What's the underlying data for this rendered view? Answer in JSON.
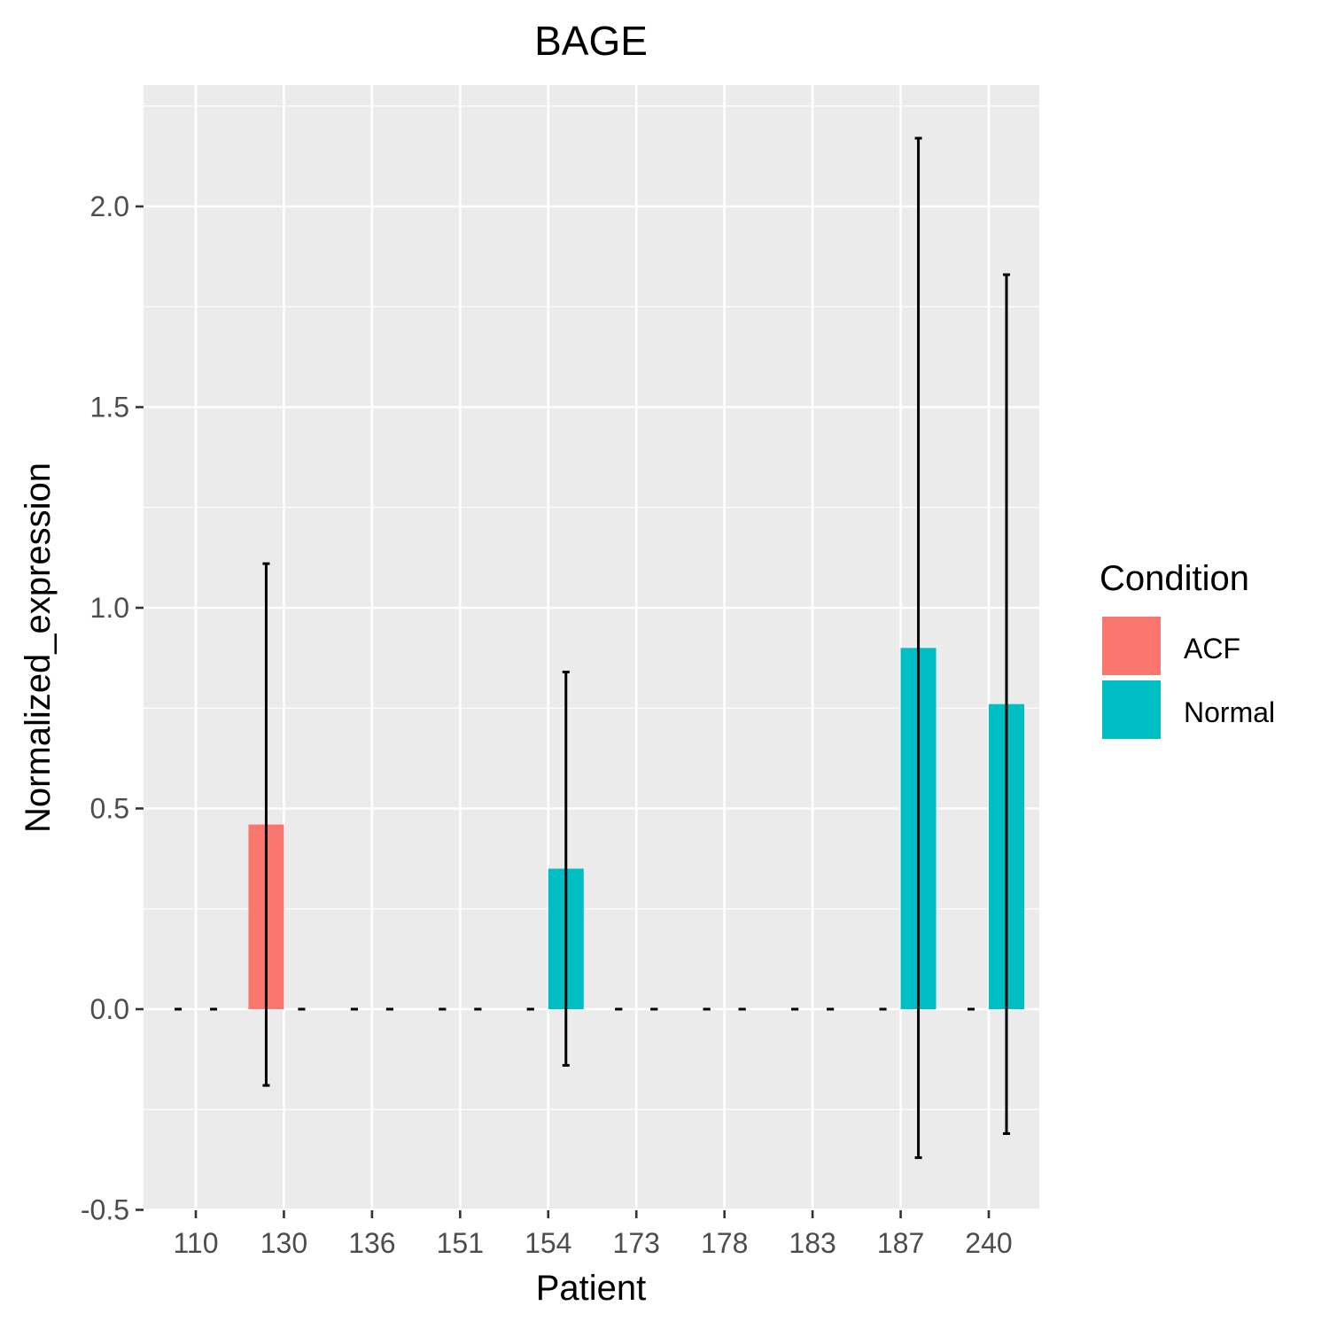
{
  "chart_data": {
    "type": "bar",
    "title": "BAGE",
    "xlabel": "Patient",
    "ylabel": "Normalized_expression",
    "ylim": [
      -0.5,
      2.3
    ],
    "yticks": [
      "-0.5",
      "0.0",
      "0.5",
      "1.0",
      "1.5",
      "2.0"
    ],
    "categories": [
      "110",
      "130",
      "136",
      "151",
      "154",
      "173",
      "178",
      "183",
      "187",
      "240"
    ],
    "grid": true,
    "legend": {
      "title": "Condition",
      "placement": "right",
      "items": [
        {
          "label": "ACF",
          "color": "#F8766D"
        },
        {
          "label": "Normal",
          "color": "#00BFC4"
        }
      ]
    },
    "series": [
      {
        "name": "ACF",
        "color": "#F8766D",
        "values": [
          0,
          0.46,
          0,
          0,
          0,
          0,
          0,
          0,
          0,
          0
        ],
        "error_low": [
          0,
          -0.19,
          0,
          0,
          0,
          0,
          0,
          0,
          0,
          0
        ],
        "error_high": [
          0,
          1.11,
          0,
          0,
          0,
          0,
          0,
          0,
          0,
          0
        ]
      },
      {
        "name": "Normal",
        "color": "#00BFC4",
        "values": [
          0,
          0,
          0,
          0,
          0.35,
          0,
          0,
          0,
          0.9,
          0.76
        ],
        "error_low": [
          0,
          0,
          0,
          0,
          -0.14,
          0,
          0,
          0,
          -0.37,
          -0.31
        ],
        "error_high": [
          0,
          0,
          0,
          0,
          0.84,
          0,
          0,
          0,
          2.17,
          1.83
        ]
      }
    ]
  }
}
